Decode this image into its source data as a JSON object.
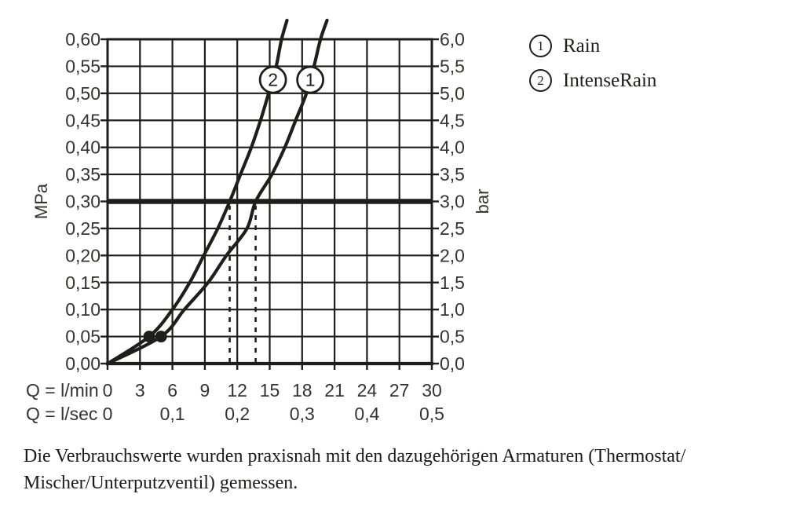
{
  "page": {
    "background": "#ffffff",
    "ink": "#1e1e1c",
    "label_color": "#333331"
  },
  "legend": {
    "items": [
      {
        "symbol": "1",
        "label": "Rain"
      },
      {
        "symbol": "2",
        "label": "IntenseRain"
      }
    ]
  },
  "caption": {
    "line1": "Die Verbrauchswerte wurden praxisnah mit den dazugehörigen Armaturen (Thermostat/",
    "line2": "Mischer/Unterputzventil) gemessen."
  },
  "chart_data": {
    "type": "line",
    "title": "",
    "grid": true,
    "x_axis": {
      "row1_label": "Q = l/min",
      "row2_label": "Q = l/sec",
      "range": [
        0,
        30
      ],
      "grid_step": 3,
      "lmin_ticks": [
        {
          "q": 0,
          "label": "0"
        },
        {
          "q": 3,
          "label": "3"
        },
        {
          "q": 6,
          "label": "6"
        },
        {
          "q": 9,
          "label": "9"
        },
        {
          "q": 12,
          "label": "12"
        },
        {
          "q": 15,
          "label": "15"
        },
        {
          "q": 18,
          "label": "18"
        },
        {
          "q": 21,
          "label": "21"
        },
        {
          "q": 24,
          "label": "24"
        },
        {
          "q": 27,
          "label": "27"
        },
        {
          "q": 30,
          "label": "30"
        }
      ],
      "lsec_ticks": [
        {
          "q": 0,
          "label": "0"
        },
        {
          "q": 6,
          "label": "0,1"
        },
        {
          "q": 12,
          "label": "0,2"
        },
        {
          "q": 18,
          "label": "0,3"
        },
        {
          "q": 24,
          "label": "0,4"
        },
        {
          "q": 30,
          "label": "0,5"
        }
      ]
    },
    "y_axis_left": {
      "label": "MPa",
      "ylim": [
        0,
        0.6
      ],
      "ticks": [
        {
          "p": 0.0,
          "label": "0,00"
        },
        {
          "p": 0.05,
          "label": "0,05"
        },
        {
          "p": 0.1,
          "label": "0,10"
        },
        {
          "p": 0.15,
          "label": "0,15"
        },
        {
          "p": 0.2,
          "label": "0,20"
        },
        {
          "p": 0.25,
          "label": "0,25"
        },
        {
          "p": 0.3,
          "label": "0,30"
        },
        {
          "p": 0.35,
          "label": "0,35"
        },
        {
          "p": 0.4,
          "label": "0,40"
        },
        {
          "p": 0.45,
          "label": "0,45"
        },
        {
          "p": 0.5,
          "label": "0,50"
        },
        {
          "p": 0.55,
          "label": "0,55"
        },
        {
          "p": 0.6,
          "label": "0,60"
        }
      ]
    },
    "y_axis_right": {
      "label": "bar",
      "ylim": [
        0,
        6.0
      ],
      "ticks": [
        {
          "p": 0.0,
          "label": "0,0"
        },
        {
          "p": 0.05,
          "label": "0,5"
        },
        {
          "p": 0.1,
          "label": "1,0"
        },
        {
          "p": 0.15,
          "label": "1,5"
        },
        {
          "p": 0.2,
          "label": "2,0"
        },
        {
          "p": 0.25,
          "label": "2,5"
        },
        {
          "p": 0.3,
          "label": "3,0"
        },
        {
          "p": 0.35,
          "label": "3,5"
        },
        {
          "p": 0.4,
          "label": "4,0"
        },
        {
          "p": 0.45,
          "label": "4,5"
        },
        {
          "p": 0.5,
          "label": "5,0"
        },
        {
          "p": 0.55,
          "label": "5,5"
        },
        {
          "p": 0.6,
          "label": "6,0"
        }
      ]
    },
    "reference_line_mpa": 0.3,
    "dashed_lines_q": [
      11.3,
      13.7
    ],
    "dots": [
      {
        "q": 3.85,
        "p": 0.05
      },
      {
        "q": 4.95,
        "p": 0.05
      }
    ],
    "series": [
      {
        "id": "1",
        "name": "Rain",
        "marker": {
          "q": 18.75,
          "p": 0.525
        },
        "points": [
          [
            0,
            0
          ],
          [
            4.95,
            0.05
          ],
          [
            7.1,
            0.1
          ],
          [
            9.3,
            0.15
          ],
          [
            11.0,
            0.2
          ],
          [
            12.9,
            0.25
          ],
          [
            13.7,
            0.3
          ],
          [
            15.2,
            0.35
          ],
          [
            16.4,
            0.4
          ],
          [
            17.4,
            0.45
          ],
          [
            18.4,
            0.5
          ],
          [
            19.1,
            0.55
          ],
          [
            19.7,
            0.6
          ],
          [
            20.3,
            0.635
          ]
        ]
      },
      {
        "id": "2",
        "name": "IntenseRain",
        "marker": {
          "q": 15.3,
          "p": 0.525
        },
        "points": [
          [
            0,
            0
          ],
          [
            3.85,
            0.05
          ],
          [
            6.0,
            0.1
          ],
          [
            7.6,
            0.15
          ],
          [
            8.9,
            0.2
          ],
          [
            10.2,
            0.25
          ],
          [
            11.3,
            0.3
          ],
          [
            12.3,
            0.35
          ],
          [
            13.3,
            0.4
          ],
          [
            14.15,
            0.45
          ],
          [
            14.9,
            0.5
          ],
          [
            15.6,
            0.55
          ],
          [
            16.1,
            0.6
          ],
          [
            16.6,
            0.635
          ]
        ]
      }
    ]
  }
}
